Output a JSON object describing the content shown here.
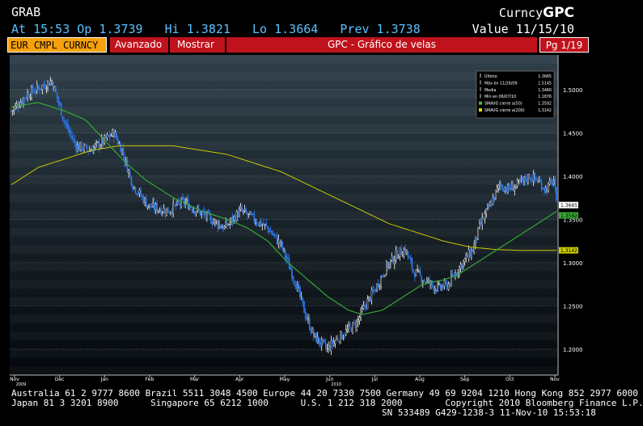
{
  "header": {
    "function_code": "GRAB",
    "brand_prefix": "Curncy",
    "brand": "GPC",
    "quote_line": "At 15:53 Op 1.3739   Hi 1.3821   Lo 1.3664   Prev 1.3738",
    "value_label": "Value 11/15/10"
  },
  "toolbar": {
    "security": "EUR CMPL CURNCY",
    "advanced": "Avanzado",
    "show": "Mostrar",
    "title": "GPC - Gráfico de velas",
    "page": "Pg 1/19"
  },
  "legend": {
    "items": [
      {
        "label": "Último",
        "value": "1.3665"
      },
      {
        "label": "Máx en 11/26/09",
        "value": "1.5145"
      },
      {
        "label": "Media",
        "value": "1.3460"
      },
      {
        "label": "Mín en 06/07/10",
        "value": "1.1876"
      },
      {
        "label": "SMAVG cierre a(50)",
        "value": "1.3592",
        "swatch": "#3fbf3f"
      },
      {
        "label": "SMAVG cierre a(200)",
        "value": "1.3142",
        "swatch": "#dada00"
      }
    ]
  },
  "colors": {
    "up": "#ffffff",
    "down": "#2e7bf0",
    "sma50": "#35a835",
    "sma200": "#c8c800"
  },
  "chart_data": {
    "type": "candlestick",
    "x_labels": [
      {
        "label": "Nov",
        "year": "2009"
      },
      {
        "label": "Dec",
        "year": ""
      },
      {
        "label": "Jan",
        "year": ""
      },
      {
        "label": "Feb",
        "year": ""
      },
      {
        "label": "Mar",
        "year": ""
      },
      {
        "label": "Apr",
        "year": ""
      },
      {
        "label": "May",
        "year": ""
      },
      {
        "label": "Jun",
        "year": "2010"
      },
      {
        "label": "Jul",
        "year": ""
      },
      {
        "label": "Aug",
        "year": ""
      },
      {
        "label": "Sep",
        "year": ""
      },
      {
        "label": "Oct",
        "year": ""
      },
      {
        "label": "Nov",
        "year": ""
      }
    ],
    "y_ticks": [
      "1.5000",
      "1.4500",
      "1.4000",
      "1.3500",
      "1.3000",
      "1.2500",
      "1.2000"
    ],
    "ylim": [
      1.17,
      1.54
    ],
    "close_path": [
      [
        0,
        1.475
      ],
      [
        12,
        1.495
      ],
      [
        24,
        1.505
      ],
      [
        30,
        1.51
      ],
      [
        34,
        1.49
      ],
      [
        40,
        1.46
      ],
      [
        48,
        1.435
      ],
      [
        58,
        1.43
      ],
      [
        68,
        1.44
      ],
      [
        76,
        1.45
      ],
      [
        82,
        1.43
      ],
      [
        90,
        1.39
      ],
      [
        102,
        1.365
      ],
      [
        116,
        1.36
      ],
      [
        128,
        1.37
      ],
      [
        138,
        1.36
      ],
      [
        148,
        1.35
      ],
      [
        158,
        1.34
      ],
      [
        170,
        1.36
      ],
      [
        180,
        1.35
      ],
      [
        190,
        1.34
      ],
      [
        200,
        1.32
      ],
      [
        210,
        1.28
      ],
      [
        218,
        1.24
      ],
      [
        224,
        1.215
      ],
      [
        234,
        1.2
      ],
      [
        240,
        1.21
      ],
      [
        248,
        1.22
      ],
      [
        256,
        1.23
      ],
      [
        262,
        1.25
      ],
      [
        270,
        1.27
      ],
      [
        278,
        1.295
      ],
      [
        286,
        1.31
      ],
      [
        292,
        1.315
      ],
      [
        298,
        1.29
      ],
      [
        306,
        1.28
      ],
      [
        316,
        1.27
      ],
      [
        324,
        1.275
      ],
      [
        332,
        1.295
      ],
      [
        342,
        1.315
      ],
      [
        348,
        1.345
      ],
      [
        356,
        1.37
      ],
      [
        362,
        1.39
      ],
      [
        368,
        1.385
      ],
      [
        376,
        1.39
      ],
      [
        384,
        1.4
      ],
      [
        390,
        1.395
      ],
      [
        396,
        1.385
      ],
      [
        402,
        1.395
      ],
      [
        404,
        1.3665
      ]
    ],
    "sma50_path": [
      [
        0,
        1.48
      ],
      [
        20,
        1.485
      ],
      [
        40,
        1.475
      ],
      [
        55,
        1.465
      ],
      [
        70,
        1.44
      ],
      [
        85,
        1.415
      ],
      [
        100,
        1.395
      ],
      [
        120,
        1.375
      ],
      [
        140,
        1.36
      ],
      [
        160,
        1.35
      ],
      [
        175,
        1.34
      ],
      [
        190,
        1.325
      ],
      [
        205,
        1.3
      ],
      [
        220,
        1.28
      ],
      [
        235,
        1.26
      ],
      [
        250,
        1.245
      ],
      [
        260,
        1.24
      ],
      [
        275,
        1.245
      ],
      [
        290,
        1.26
      ],
      [
        305,
        1.275
      ],
      [
        320,
        1.28
      ],
      [
        330,
        1.285
      ],
      [
        345,
        1.3
      ],
      [
        360,
        1.315
      ],
      [
        375,
        1.33
      ],
      [
        390,
        1.345
      ],
      [
        404,
        1.3592
      ]
    ],
    "sma200_path": [
      [
        0,
        1.39
      ],
      [
        20,
        1.41
      ],
      [
        40,
        1.42
      ],
      [
        60,
        1.43
      ],
      [
        80,
        1.435
      ],
      [
        100,
        1.435
      ],
      [
        120,
        1.435
      ],
      [
        140,
        1.43
      ],
      [
        160,
        1.425
      ],
      [
        180,
        1.415
      ],
      [
        200,
        1.405
      ],
      [
        220,
        1.39
      ],
      [
        240,
        1.375
      ],
      [
        260,
        1.36
      ],
      [
        280,
        1.345
      ],
      [
        300,
        1.335
      ],
      [
        320,
        1.325
      ],
      [
        340,
        1.318
      ],
      [
        360,
        1.315
      ],
      [
        380,
        1.314
      ],
      [
        404,
        1.3142
      ]
    ],
    "last_labels": [
      {
        "text": "1.3665",
        "y": 1.3665
      },
      {
        "text": "1.3592",
        "y": 1.3592
      },
      {
        "text": "1.3142",
        "y": 1.3142
      }
    ]
  },
  "footer": {
    "line1": "Australia 61 2 9777 8600 Brazil 5511 3048 4500 Europe 44 20 7330 7500 Germany 49 69 9204 1210 Hong Kong 852 2977 6000",
    "line2": "Japan 81 3 3201 8900      Singapore 65 6212 1000      U.S. 1 212 318 2000        Copyright 2010 Bloomberg Finance L.P.",
    "line3": "SN 533489 G429-1238-3 11-Nov-10 15:53:18"
  }
}
